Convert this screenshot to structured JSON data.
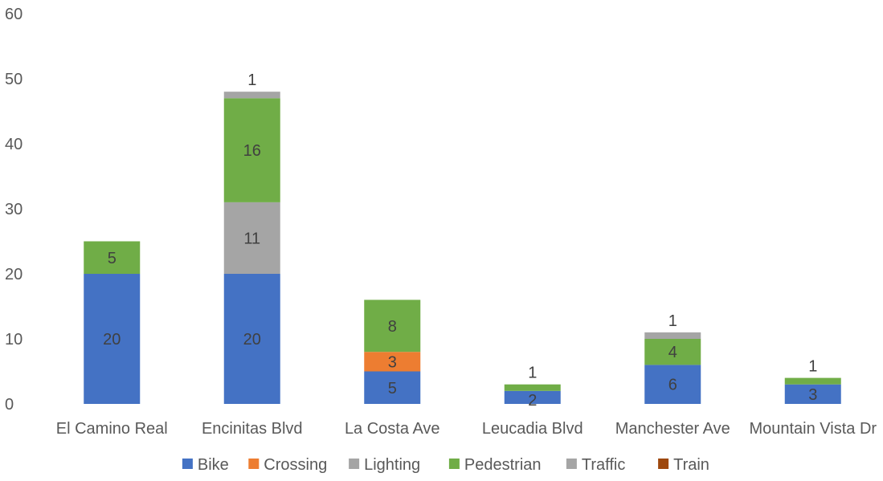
{
  "chart_data": {
    "type": "bar",
    "stacked": true,
    "title": "",
    "xlabel": "",
    "ylabel": "",
    "ylim": [
      0,
      60
    ],
    "y_ticks": [
      "0",
      "10",
      "20",
      "30",
      "40",
      "50",
      "60"
    ],
    "grid": false,
    "legend_position": "bottom",
    "categories": [
      "El Camino Real",
      "Encinitas Blvd",
      "La Costa Ave",
      "Leucadia Blvd",
      "Manchester Ave",
      "Mountain Vista Dr"
    ],
    "series": [
      {
        "name": "Bike",
        "color": "#4472C4",
        "values": [
          20,
          20,
          5,
          2,
          6,
          3
        ],
        "labels": [
          "20",
          "20",
          "5",
          "2",
          "6",
          "3"
        ]
      },
      {
        "name": "Crossing",
        "color": "#ED7D31",
        "values": [
          0,
          0,
          3,
          0,
          0,
          0
        ],
        "labels": [
          "",
          "",
          "3",
          "",
          "",
          ""
        ]
      },
      {
        "name": "Lighting",
        "color": "#A5A5A5",
        "values": [
          0,
          11,
          0,
          0,
          0,
          0
        ],
        "labels": [
          "",
          "11",
          "",
          "",
          "",
          ""
        ]
      },
      {
        "name": "Pedestrian",
        "color": "#70AD47",
        "values": [
          5,
          16,
          8,
          1,
          4,
          1
        ],
        "labels": [
          "5",
          "16",
          "8",
          "1",
          "4",
          "1"
        ]
      },
      {
        "name": "Traffic",
        "color": "#A5A5A5",
        "values": [
          0,
          1,
          0,
          0,
          1,
          0
        ],
        "labels": [
          "",
          "1",
          "",
          "",
          "1",
          ""
        ]
      },
      {
        "name": "Train",
        "color": "#9E480E",
        "values": [
          0,
          0,
          0,
          0,
          0,
          0
        ],
        "labels": [
          "",
          "",
          "",
          "",
          "",
          ""
        ]
      }
    ],
    "label_colors": {
      "inside": "#404040",
      "above": "#404040"
    }
  }
}
